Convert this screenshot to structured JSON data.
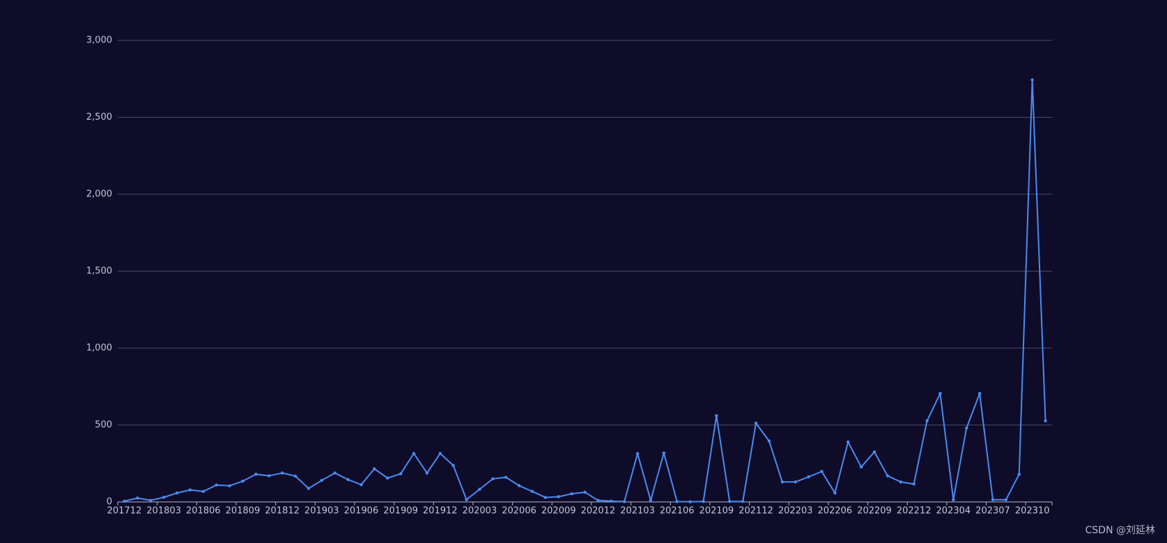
{
  "chart_data": {
    "type": "line",
    "categories": [
      "201712",
      null,
      null,
      "201803",
      null,
      null,
      "201806",
      null,
      null,
      "201809",
      null,
      null,
      "201812",
      null,
      null,
      "201903",
      null,
      null,
      "201906",
      null,
      null,
      "201909",
      null,
      null,
      "201912",
      null,
      null,
      "202003",
      null,
      null,
      "202006",
      null,
      null,
      "202009",
      null,
      null,
      "202012",
      null,
      null,
      "202103",
      null,
      null,
      "202106",
      null,
      null,
      "202109",
      null,
      null,
      "202112",
      null,
      null,
      "202203",
      null,
      null,
      "202206",
      null,
      null,
      "202209",
      null,
      null,
      "202212",
      null,
      null,
      "202304",
      null,
      null,
      "202307",
      null,
      null,
      "202310",
      null
    ],
    "series": [
      {
        "color": "#4a8cf0",
        "values": [
          5,
          25,
          10,
          30,
          58,
          78,
          68,
          110,
          105,
          135,
          180,
          170,
          188,
          168,
          88,
          140,
          188,
          145,
          112,
          215,
          155,
          183,
          315,
          188,
          315,
          237,
          15,
          82,
          150,
          160,
          106,
          68,
          29,
          34,
          53,
          63,
          10,
          5,
          2,
          314,
          10,
          318,
          2,
          1,
          3,
          560,
          3,
          3,
          512,
          396,
          130,
          130,
          163,
          198,
          58,
          390,
          227,
          325,
          170,
          130,
          116,
          527,
          705,
          14,
          480,
          705,
          14,
          14,
          180,
          2743,
          527
        ]
      }
    ],
    "ylim": [
      0,
      3000
    ],
    "yticks": [
      0,
      500,
      {
        "value": 1000,
        "label": "1,000"
      },
      {
        "value": 1500,
        "label": "1,500"
      },
      {
        "value": 2000,
        "label": "2,000"
      },
      {
        "value": 2500,
        "label": "2,500"
      },
      {
        "value": 3000,
        "label": "3,000"
      }
    ],
    "grid": true,
    "watermark": "CSDN @刘延林"
  }
}
